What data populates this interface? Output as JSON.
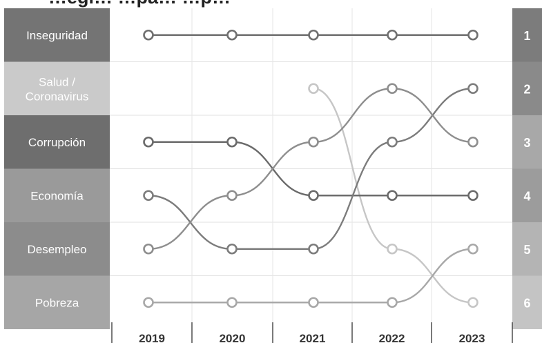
{
  "title": "…egi…   …pa…   …p…",
  "chart_data": {
    "type": "bump",
    "title": "",
    "x": [
      "2019",
      "2020",
      "2021",
      "2022",
      "2023"
    ],
    "ranks": [
      "1",
      "2",
      "3",
      "4",
      "5",
      "6"
    ],
    "row_labels": [
      "Inseguridad",
      "Salud / Coronavirus",
      "Corrupción",
      "Economía",
      "Desempleo",
      "Pobreza"
    ],
    "series": [
      {
        "name": "Inseguridad",
        "ranks": [
          1,
          1,
          1,
          1,
          1
        ],
        "color": "#6f6f6f"
      },
      {
        "name": "Salud / Coronavirus",
        "ranks": [
          null,
          null,
          2,
          5,
          6
        ],
        "color": "#c6c6c6"
      },
      {
        "name": "Corrupción",
        "ranks": [
          3,
          3,
          4,
          4,
          4
        ],
        "color": "#6a6a6a"
      },
      {
        "name": "Economía",
        "ranks": [
          4,
          5,
          5,
          3,
          2
        ],
        "color": "#7c7c7c"
      },
      {
        "name": "Desempleo",
        "ranks": [
          5,
          4,
          3,
          2,
          3
        ],
        "color": "#8e8e8e"
      },
      {
        "name": "Pobreza",
        "ranks": [
          6,
          6,
          6,
          6,
          5
        ],
        "color": "#a8a8a8"
      }
    ],
    "row_colors": [
      "#747474",
      "#cacaca",
      "#6e6e6e",
      "#9a9a9a",
      "#8c8c8c",
      "#a6a6a6"
    ],
    "rank_colors": [
      "#7c7c7c",
      "#8a8a8a",
      "#a8a8a8",
      "#9c9c9c",
      "#b4b4b4",
      "#c4c4c4"
    ]
  }
}
